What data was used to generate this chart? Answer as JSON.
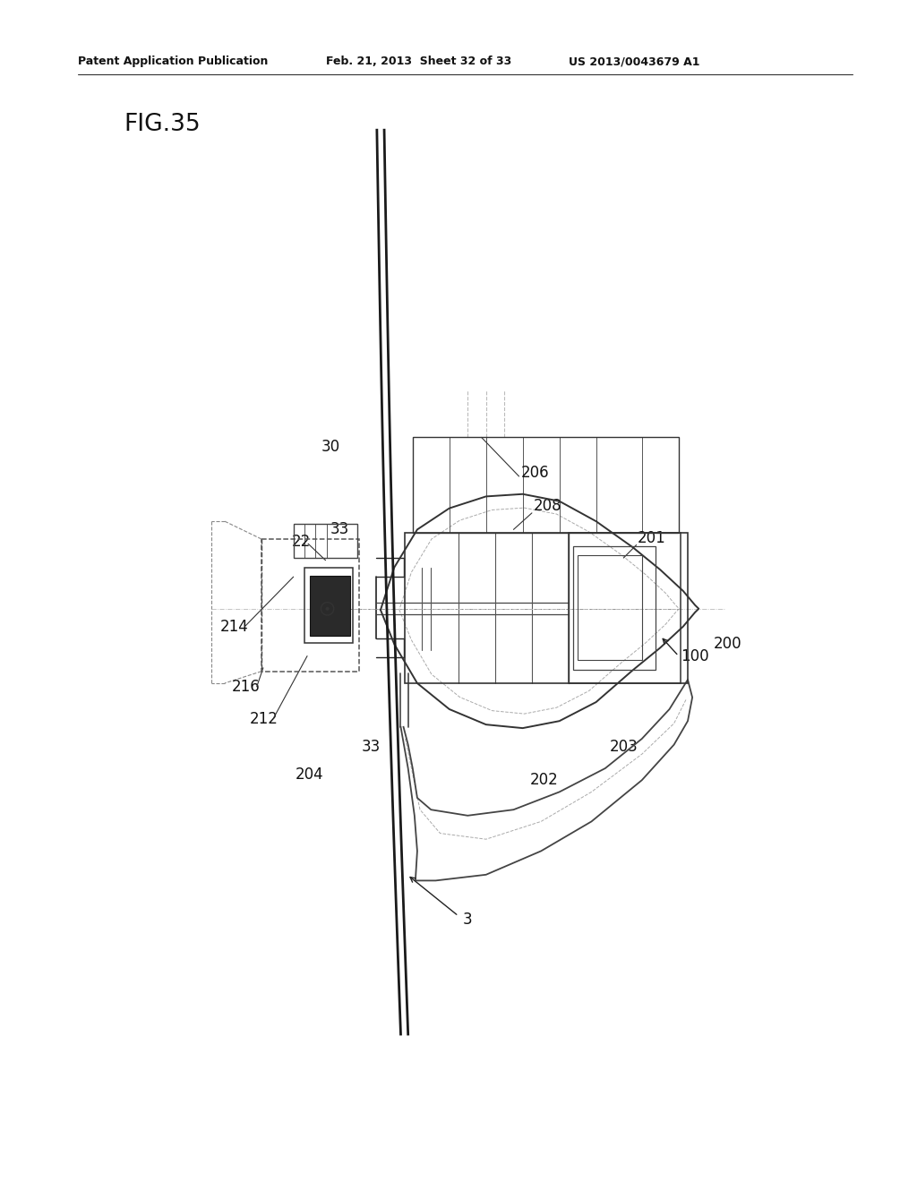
{
  "header_left": "Patent Application Publication",
  "header_mid": "Feb. 21, 2013  Sheet 32 of 33",
  "header_right": "US 2013/0043679 A1",
  "fig_label": "FIG.35",
  "bg_color": "#ffffff",
  "lc": "#222222",
  "mlc": "#555555",
  "llc": "#999999",
  "dlc": "#aaaaaa"
}
